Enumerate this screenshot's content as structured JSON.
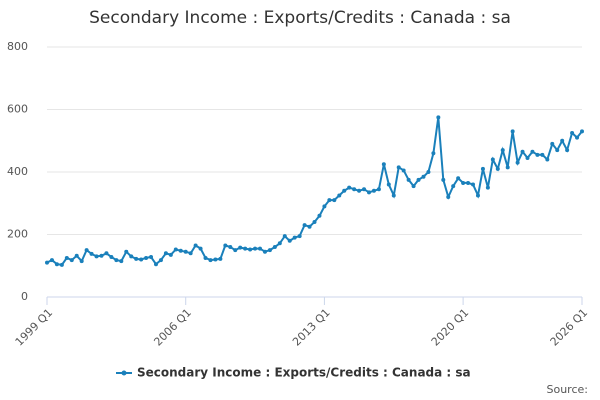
{
  "chart_data": {
    "type": "line",
    "title": "Secondary Income : Exports/Credits : Canada : sa",
    "categories": [
      "1999 Q1",
      null,
      null,
      null,
      null,
      null,
      null,
      null,
      null,
      null,
      null,
      null,
      null,
      null,
      null,
      null,
      null,
      null,
      null,
      null,
      null,
      null,
      null,
      null,
      null,
      null,
      null,
      null,
      "2006 Q1",
      null,
      null,
      null,
      null,
      null,
      null,
      null,
      null,
      null,
      null,
      null,
      null,
      null,
      null,
      null,
      null,
      null,
      null,
      null,
      null,
      null,
      null,
      null,
      null,
      null,
      null,
      null,
      "2013 Q1",
      null,
      null,
      null,
      null,
      null,
      null,
      null,
      null,
      null,
      null,
      null,
      null,
      null,
      null,
      null,
      null,
      null,
      null,
      null,
      null,
      null,
      null,
      null,
      null,
      null,
      null,
      null,
      "2020 Q1",
      null,
      null,
      null,
      null,
      null,
      null,
      null,
      null,
      null,
      null,
      null,
      null,
      null,
      null,
      null,
      null,
      null,
      null,
      null,
      null,
      null,
      null,
      null,
      "2026 Q1"
    ],
    "series": [
      {
        "name": "Secondary Income : Exports/Credits : Canada : sa",
        "color": "#1a80bb",
        "values": [
          110,
          118,
          105,
          103,
          125,
          118,
          132,
          115,
          150,
          138,
          130,
          132,
          140,
          128,
          118,
          115,
          145,
          130,
          122,
          120,
          125,
          128,
          105,
          118,
          140,
          135,
          152,
          148,
          145,
          140,
          165,
          155,
          125,
          118,
          120,
          122,
          165,
          160,
          150,
          158,
          155,
          152,
          155,
          155,
          145,
          150,
          160,
          172,
          195,
          180,
          190,
          195,
          230,
          225,
          240,
          260,
          290,
          310,
          310,
          325,
          340,
          350,
          345,
          340,
          345,
          335,
          340,
          345,
          425,
          360,
          325,
          415,
          405,
          375,
          355,
          375,
          385,
          400,
          460,
          575,
          375,
          320,
          355,
          380,
          365,
          365,
          360,
          325,
          410,
          350,
          440,
          410,
          470,
          415,
          530,
          430,
          465,
          445,
          465,
          455,
          455,
          440,
          490,
          470,
          500,
          470,
          525,
          510,
          530
        ]
      }
    ],
    "ylim": [
      0,
      800
    ],
    "yticks": [
      0,
      200,
      400,
      600,
      800
    ],
    "grid": true,
    "legend": "bottom",
    "source": "Source:"
  }
}
